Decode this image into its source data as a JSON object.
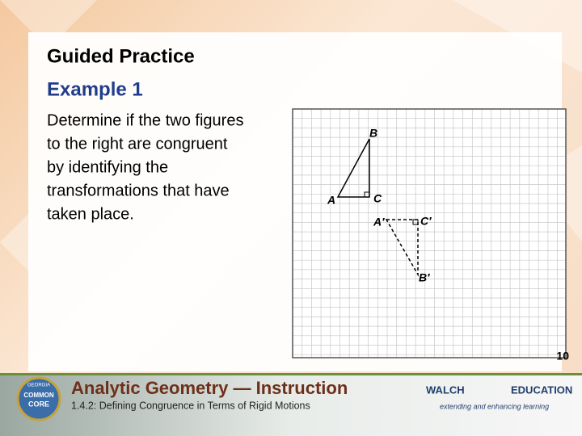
{
  "slide": {
    "title": "Guided Practice",
    "subtitle": "Example 1",
    "body_lines": [
      "Determine if the two figures",
      "to the right are congruent",
      "by identifying the",
      "transformations that have",
      "taken place."
    ],
    "figure": {
      "labels": [
        "B",
        "A",
        "C",
        "A′",
        "C′",
        "B′"
      ]
    },
    "page_number": "10"
  },
  "footer": {
    "logo": [
      "GEORGIA",
      "COMMON",
      "CORE"
    ],
    "course": "Analytic Geometry — Instruction",
    "lesson": "1.4.2: Defining Congruence in Terms of Rigid Motions",
    "publisher": [
      "WALCH",
      "EDUCATION"
    ],
    "tagline": "extending and enhancing learning"
  }
}
